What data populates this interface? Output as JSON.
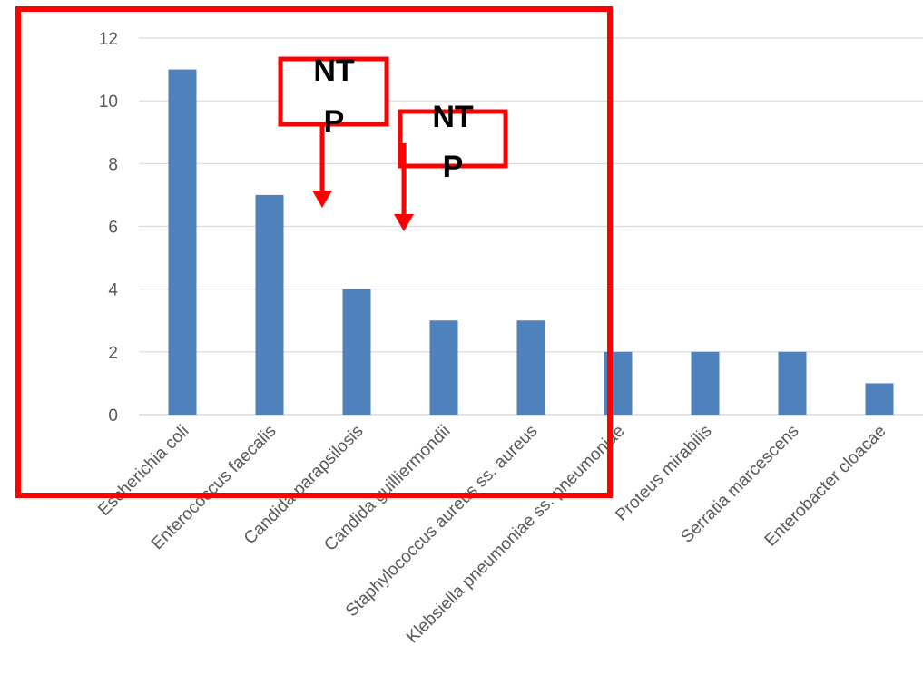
{
  "chart_data": {
    "type": "bar",
    "categories": [
      "Escherichia coli",
      "Enterococcus faecalis",
      "Candida parapsilosis",
      "Candida guilliermondii",
      "Staphylococcus aureus ss. aureus",
      "Klebsiella pneumoniae ss. pneumoniae",
      "Proteus mirabilis",
      "Serratia marcescens",
      "Enterobacter cloacae"
    ],
    "values": [
      11,
      7,
      4,
      3,
      3,
      2,
      2,
      2,
      1
    ],
    "ylim": [
      0,
      12
    ],
    "yticks": [
      0,
      2,
      4,
      6,
      8,
      10,
      12
    ],
    "grid": true,
    "colors": {
      "bar": "#4f81bd",
      "annotation": "#ff0000",
      "grid": "#d9d9d9"
    }
  },
  "annotations": [
    {
      "line1": "NT",
      "line2": "P"
    },
    {
      "line1": "NT",
      "line2": "P"
    }
  ]
}
